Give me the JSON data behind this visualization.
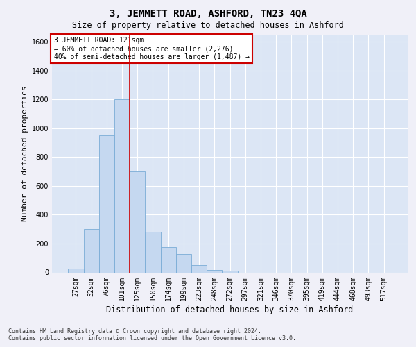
{
  "title": "3, JEMMETT ROAD, ASHFORD, TN23 4QA",
  "subtitle": "Size of property relative to detached houses in Ashford",
  "xlabel": "Distribution of detached houses by size in Ashford",
  "ylabel": "Number of detached properties",
  "footnote": "Contains HM Land Registry data © Crown copyright and database right 2024.\nContains public sector information licensed under the Open Government Licence v3.0.",
  "bar_labels": [
    "27sqm",
    "52sqm",
    "76sqm",
    "101sqm",
    "125sqm",
    "150sqm",
    "174sqm",
    "199sqm",
    "223sqm",
    "248sqm",
    "272sqm",
    "297sqm",
    "321sqm",
    "346sqm",
    "370sqm",
    "395sqm",
    "419sqm",
    "444sqm",
    "468sqm",
    "493sqm",
    "517sqm"
  ],
  "bar_heights": [
    25,
    300,
    950,
    1200,
    700,
    280,
    175,
    130,
    50,
    15,
    10,
    0,
    0,
    0,
    0,
    0,
    0,
    0,
    0,
    0,
    0
  ],
  "bar_color": "#c5d8f0",
  "bar_edge_color": "#7aacd6",
  "vline_x": 3.5,
  "vline_color": "#cc0000",
  "ylim": [
    0,
    1650
  ],
  "yticks": [
    0,
    200,
    400,
    600,
    800,
    1000,
    1200,
    1400,
    1600
  ],
  "annotation_text": "3 JEMMETT ROAD: 121sqm\n← 60% of detached houses are smaller (2,276)\n40% of semi-detached houses are larger (1,487) →",
  "annotation_box_color": "#ffffff",
  "annotation_box_edge": "#cc0000",
  "fig_bg_color": "#f0f0f8",
  "plot_bg_color": "#dce6f5",
  "grid_color": "#ffffff",
  "title_fontsize": 10,
  "subtitle_fontsize": 8.5,
  "tick_fontsize": 7,
  "ylabel_fontsize": 8,
  "xlabel_fontsize": 8.5,
  "annot_fontsize": 7,
  "footnote_fontsize": 6
}
